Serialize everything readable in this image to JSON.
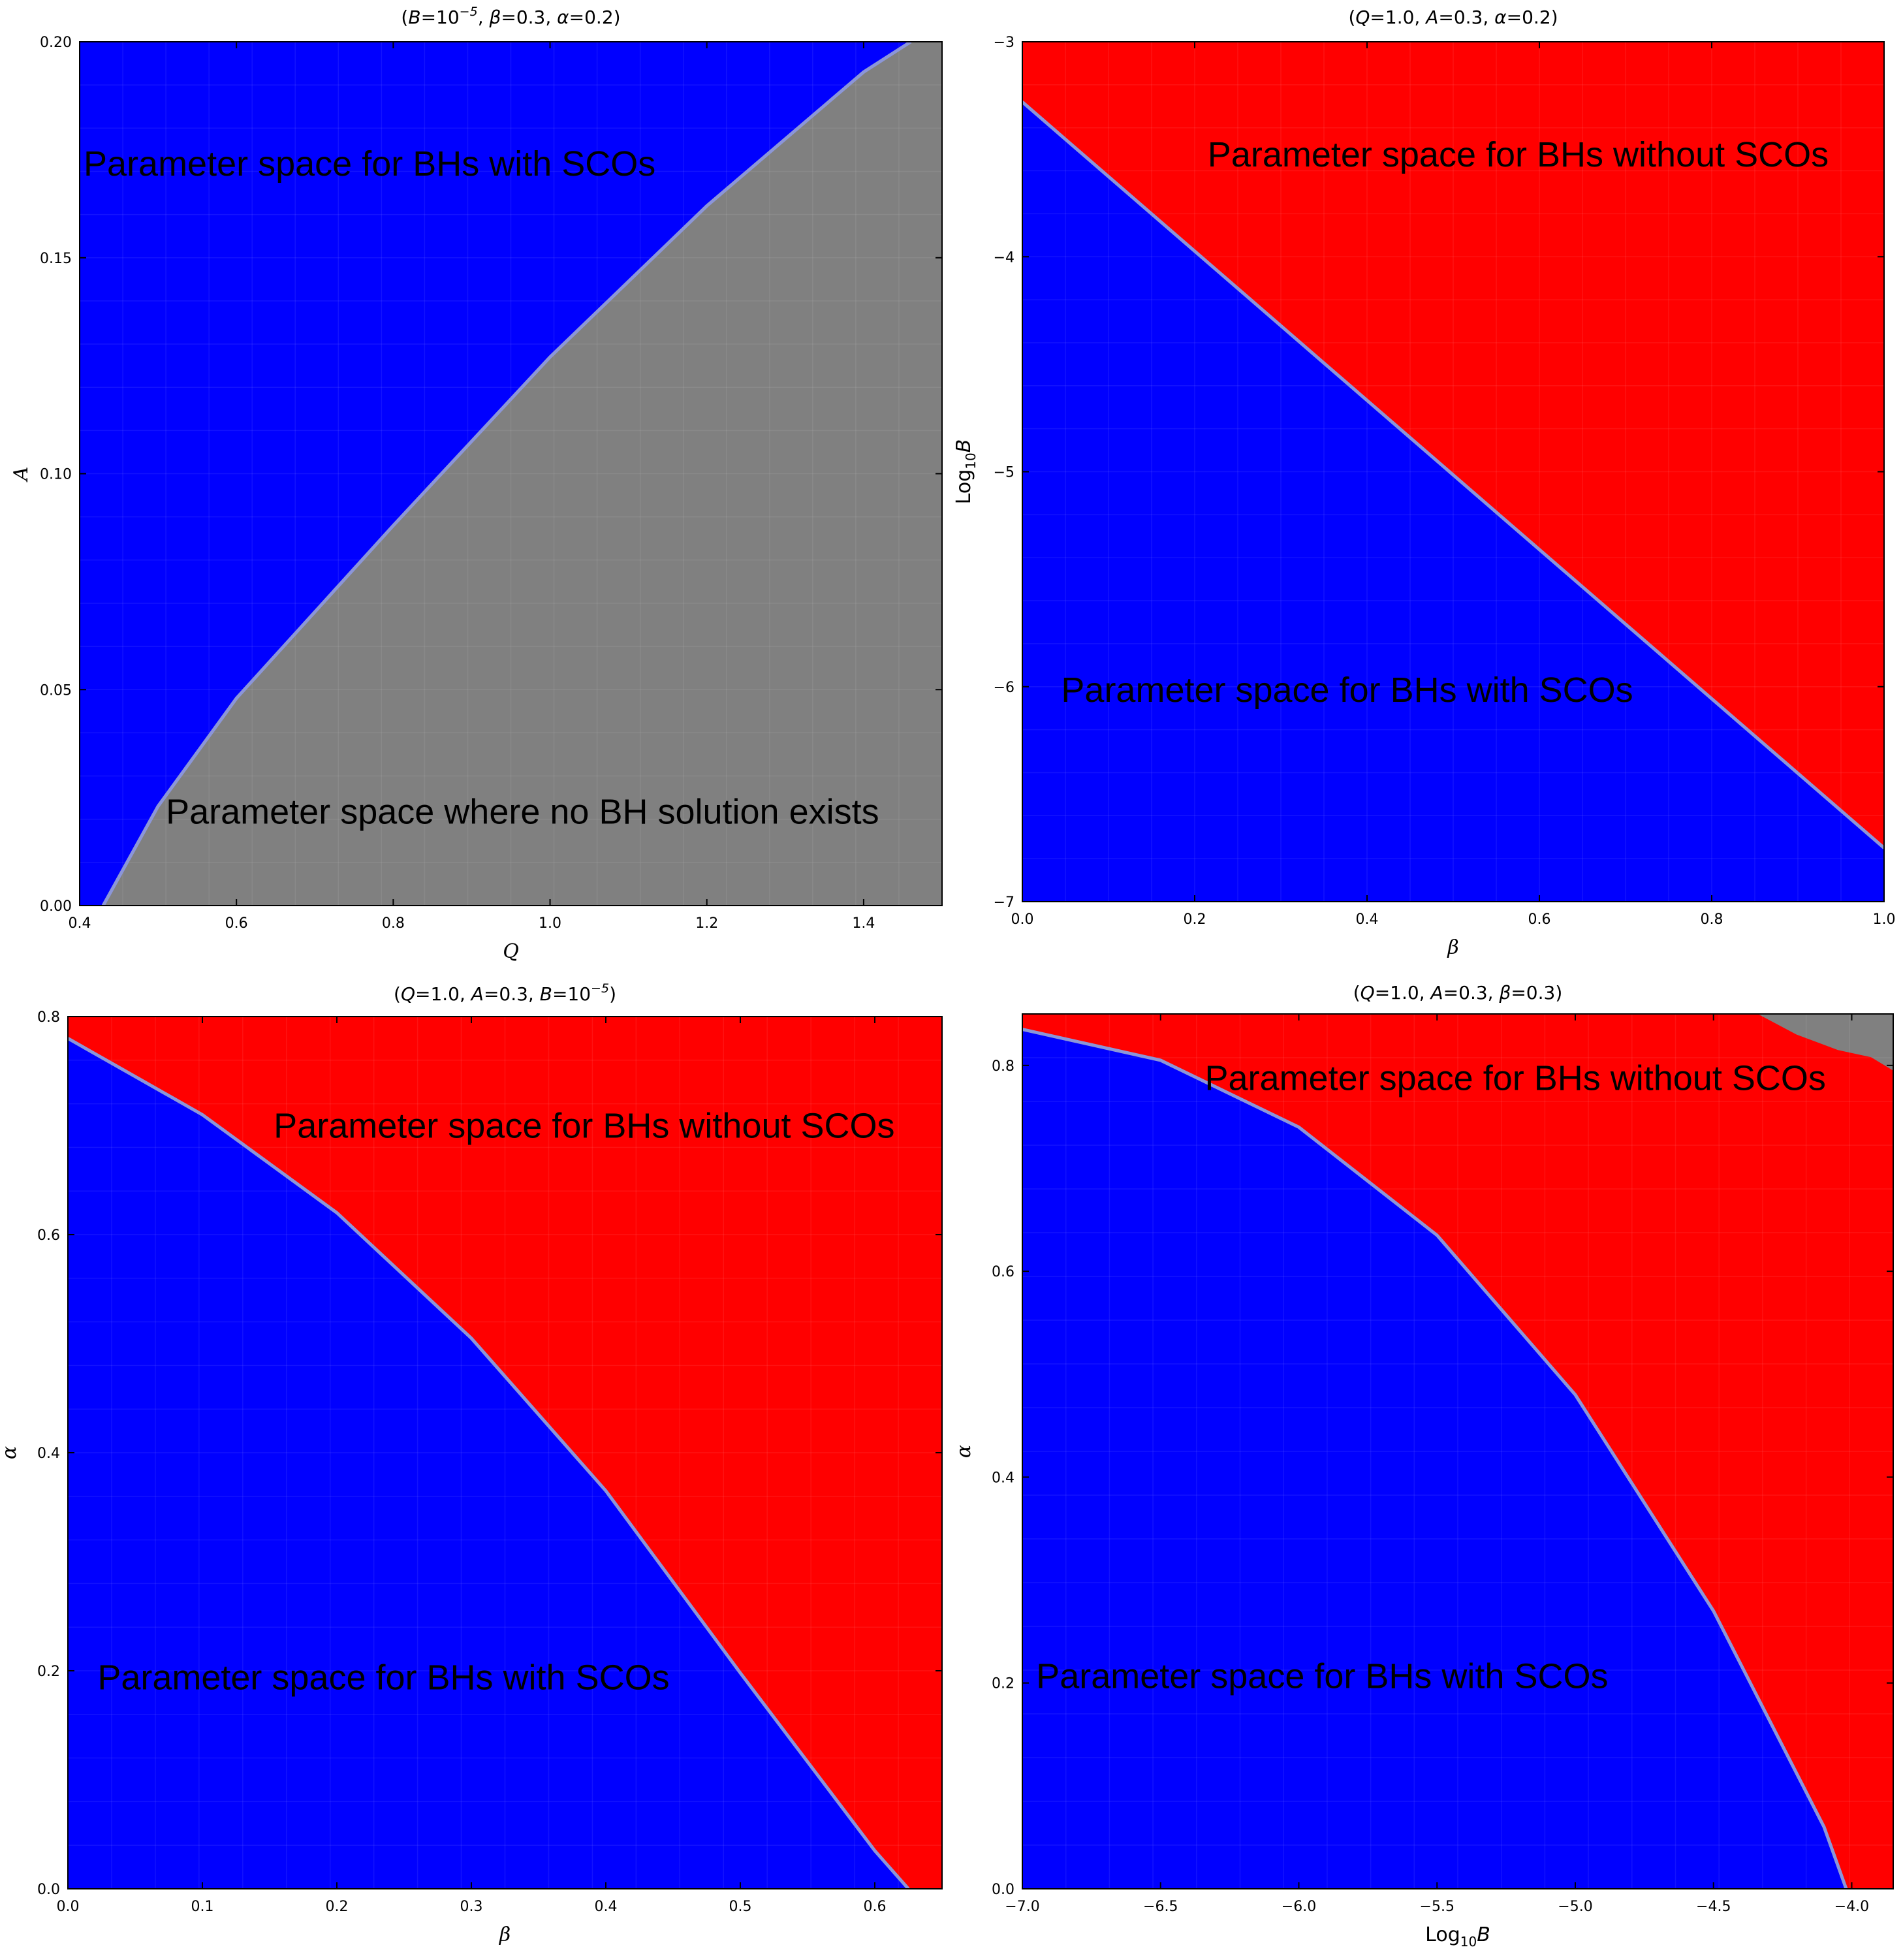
{
  "chart_data": [
    {
      "type": "region",
      "title": "(B=10^-5, β=0.3, α=0.2)",
      "title_parts": [
        "(",
        "B",
        "=10",
        "−5",
        ", ",
        "β",
        "=0.3, ",
        "α",
        "=0.2)"
      ],
      "xlabel": "Q",
      "ylabel": "A",
      "xlim": [
        0.4,
        1.5
      ],
      "ylim": [
        0.0,
        0.2
      ],
      "x_ticks": [
        "0.4",
        "0.6",
        "0.8",
        "1.0",
        "1.2",
        "1.4"
      ],
      "x_tick_values": [
        0.4,
        0.6,
        0.8,
        1.0,
        1.2,
        1.4
      ],
      "y_ticks": [
        "0.00",
        "0.05",
        "0.10",
        "0.15",
        "0.20"
      ],
      "y_tick_values": [
        0.0,
        0.05,
        0.1,
        0.15,
        0.2
      ],
      "background_region": "blue",
      "regions": [
        {
          "color": "gray",
          "boundary": [
            [
              0.43,
              0.0
            ],
            [
              0.5,
              0.023
            ],
            [
              0.6,
              0.048
            ],
            [
              0.8,
              0.088
            ],
            [
              1.0,
              0.127
            ],
            [
              1.2,
              0.162
            ],
            [
              1.4,
              0.193
            ],
            [
              1.46,
              0.2
            ],
            [
              1.5,
              0.2
            ],
            [
              1.5,
              0.0
            ]
          ]
        }
      ],
      "boundary": [
        [
          0.43,
          0.0
        ],
        [
          0.5,
          0.023
        ],
        [
          0.6,
          0.048
        ],
        [
          0.8,
          0.088
        ],
        [
          1.0,
          0.127
        ],
        [
          1.2,
          0.162
        ],
        [
          1.4,
          0.193
        ],
        [
          1.46,
          0.2
        ]
      ],
      "annotations": [
        {
          "text": "Parameter space for BHs with SCOs",
          "x": 0.405,
          "y": 0.169
        },
        {
          "text": "Parameter space where no BH solution exists",
          "x": 0.51,
          "y": 0.019
        }
      ]
    },
    {
      "type": "region",
      "title": "(Q=1.0, A=0.3, α=0.2)",
      "title_parts": [
        "(",
        "Q",
        "=1.0, ",
        "A",
        "=0.3, ",
        "α",
        "=0.2)"
      ],
      "xlabel": "β",
      "ylabel": "Log10B",
      "xlim": [
        0.0,
        1.0
      ],
      "ylim": [
        -7,
        -3
      ],
      "x_ticks": [
        "0.0",
        "0.2",
        "0.4",
        "0.6",
        "0.8",
        "1.0"
      ],
      "x_tick_values": [
        0.0,
        0.2,
        0.4,
        0.6,
        0.8,
        1.0
      ],
      "y_ticks": [
        "−7",
        "−6",
        "−5",
        "−4",
        "−3"
      ],
      "y_tick_values": [
        -7,
        -6,
        -5,
        -4,
        -3
      ],
      "background_region": "blue",
      "regions": [
        {
          "color": "red",
          "boundary": [
            [
              0.0,
              -3.28
            ],
            [
              1.0,
              -6.75
            ],
            [
              1.0,
              -3.0
            ],
            [
              0.0,
              -3.0
            ]
          ]
        }
      ],
      "boundary": [
        [
          0.0,
          -3.28
        ],
        [
          1.0,
          -6.75
        ]
      ],
      "annotations": [
        {
          "text": "Parameter space for BHs without SCOs",
          "x": 0.215,
          "y": -3.58
        },
        {
          "text": "Parameter space for BHs with SCOs",
          "x": 0.045,
          "y": -6.07
        }
      ]
    },
    {
      "type": "region",
      "title": "(Q=1.0, A=0.3, B=10^-5)",
      "title_parts": [
        "(",
        "Q",
        "=1.0, ",
        "A",
        "=0.3, ",
        "B",
        "=10",
        "−5",
        ")"
      ],
      "xlabel": "β",
      "ylabel": "α",
      "xlim": [
        0.0,
        0.65
      ],
      "ylim": [
        0.0,
        0.8
      ],
      "x_ticks": [
        "0.0",
        "0.1",
        "0.2",
        "0.3",
        "0.4",
        "0.5",
        "0.6"
      ],
      "x_tick_values": [
        0.0,
        0.1,
        0.2,
        0.3,
        0.4,
        0.5,
        0.6
      ],
      "y_ticks": [
        "0.0",
        "0.2",
        "0.4",
        "0.6",
        "0.8"
      ],
      "y_tick_values": [
        0.0,
        0.2,
        0.4,
        0.6,
        0.8
      ],
      "background_region": "blue",
      "regions": [
        {
          "color": "red",
          "boundary": [
            [
              0.0,
              0.78
            ],
            [
              0.1,
              0.71
            ],
            [
              0.2,
              0.62
            ],
            [
              0.3,
              0.505
            ],
            [
              0.4,
              0.365
            ],
            [
              0.5,
              0.198
            ],
            [
              0.6,
              0.035
            ],
            [
              0.625,
              0.0
            ],
            [
              0.65,
              0.0
            ],
            [
              0.65,
              0.8
            ],
            [
              0.0,
              0.8
            ]
          ]
        }
      ],
      "boundary": [
        [
          0.0,
          0.78
        ],
        [
          0.1,
          0.71
        ],
        [
          0.2,
          0.62
        ],
        [
          0.3,
          0.505
        ],
        [
          0.4,
          0.365
        ],
        [
          0.5,
          0.198
        ],
        [
          0.6,
          0.035
        ],
        [
          0.625,
          0.0
        ]
      ],
      "annotations": [
        {
          "text": "Parameter space for BHs without SCOs",
          "x": 0.153,
          "y": 0.689
        },
        {
          "text": "Parameter space for BHs with SCOs",
          "x": 0.022,
          "y": 0.183
        }
      ]
    },
    {
      "type": "region",
      "title": "(Q=1.0, A=0.3, β=0.3)",
      "title_parts": [
        "(",
        "Q",
        "=1.0, ",
        "A",
        "=0.3, ",
        "β",
        "=0.3)"
      ],
      "xlabel": "Log10B",
      "ylabel": "α",
      "xlim": [
        -7.0,
        -3.85
      ],
      "ylim": [
        0.0,
        0.85
      ],
      "x_ticks": [
        "−7.0",
        "−6.5",
        "−6.0",
        "−5.5",
        "−5.0",
        "−4.5",
        "−4.0"
      ],
      "x_tick_values": [
        -7.0,
        -6.5,
        -6.0,
        -5.5,
        -5.0,
        -4.5,
        -4.0
      ],
      "y_ticks": [
        "0.0",
        "0.2",
        "0.4",
        "0.6",
        "0.8"
      ],
      "y_tick_values": [
        0.0,
        0.2,
        0.4,
        0.6,
        0.8
      ],
      "background_region": "blue",
      "regions": [
        {
          "color": "red",
          "boundary": [
            [
              -7.0,
              0.835
            ],
            [
              -6.5,
              0.805
            ],
            [
              -6.0,
              0.74
            ],
            [
              -5.5,
              0.635
            ],
            [
              -5.0,
              0.48
            ],
            [
              -4.5,
              0.27
            ],
            [
              -4.1,
              0.06
            ],
            [
              -4.02,
              0.0
            ],
            [
              -3.85,
              0.0
            ],
            [
              -3.85,
              0.85
            ],
            [
              -7.0,
              0.85
            ]
          ]
        },
        {
          "color": "gray",
          "boundary": [
            [
              -4.34,
              0.85
            ],
            [
              -4.2,
              0.83
            ],
            [
              -4.05,
              0.815
            ],
            [
              -3.93,
              0.808
            ],
            [
              -3.85,
              0.795
            ],
            [
              -3.85,
              0.85
            ]
          ]
        }
      ],
      "boundary": [
        [
          -7.0,
          0.835
        ],
        [
          -6.5,
          0.805
        ],
        [
          -6.0,
          0.74
        ],
        [
          -5.5,
          0.635
        ],
        [
          -5.0,
          0.48
        ],
        [
          -4.5,
          0.27
        ],
        [
          -4.1,
          0.06
        ],
        [
          -4.02,
          0.0
        ]
      ],
      "annotations": [
        {
          "text": "Parameter space for BHs without SCOs",
          "x": -6.34,
          "y": 0.776
        },
        {
          "text": "Parameter space for BHs with SCOs",
          "x": -6.95,
          "y": 0.195
        }
      ]
    }
  ],
  "colors": {
    "blue": "#0000ff",
    "red": "#ff0000",
    "gray": "#808080",
    "boundary_line": "#8c96d8",
    "frame": "#000000",
    "text": "#000000"
  }
}
